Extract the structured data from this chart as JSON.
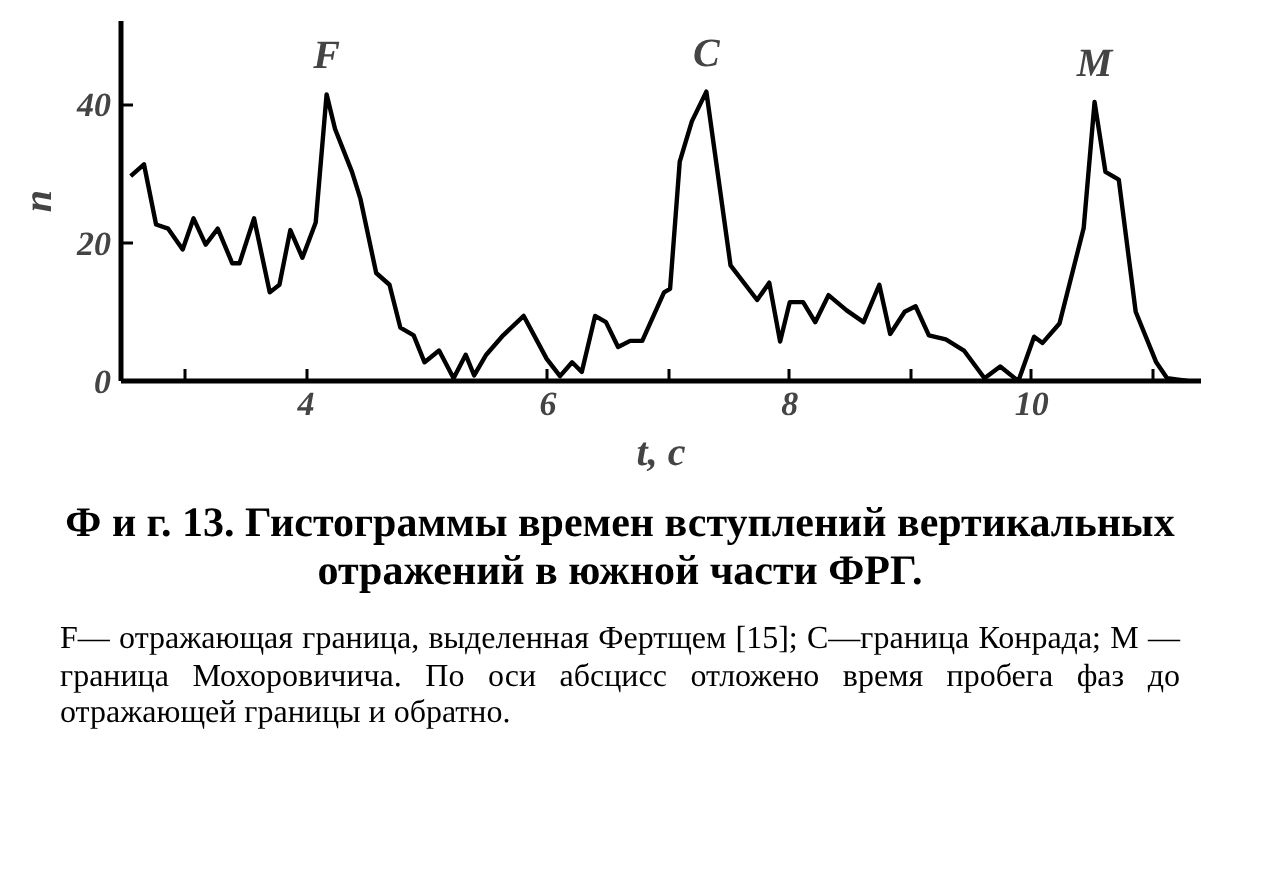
{
  "chart_data": {
    "type": "line",
    "title": "Ф и г. 13. Гистограммы времен вступлений вертикальных отражений в южной части ФРГ.",
    "subtitle": "F— отражающая граница, выделенная Фертщем [15]; C—граница Конрада; M — граница Мохоровичича. По оси абсцисс отложено время пробега фаз до отражающей границы и обратно.",
    "xlabel": "t, c",
    "ylabel": "n",
    "x": [
      2.55,
      2.66,
      2.76,
      2.86,
      2.98,
      3.07,
      3.17,
      3.27,
      3.39,
      3.45,
      3.57,
      3.7,
      3.78,
      3.87,
      3.97,
      4.08,
      4.17,
      4.24,
      4.38,
      4.45,
      4.58,
      4.69,
      4.78,
      4.89,
      4.98,
      5.1,
      5.22,
      5.32,
      5.39,
      5.49,
      5.63,
      5.8,
      5.99,
      6.1,
      6.2,
      6.28,
      6.39,
      6.48,
      6.58,
      6.68,
      6.78,
      6.96,
      7.01,
      7.09,
      7.19,
      7.31,
      7.51,
      7.73,
      7.83,
      7.92,
      8.0,
      8.11,
      8.21,
      8.32,
      8.47,
      8.61,
      8.74,
      8.83,
      8.95,
      9.04,
      9.15,
      9.29,
      9.44,
      9.61,
      9.74,
      9.89,
      10.02,
      10.09,
      10.23,
      10.43,
      10.52,
      10.61,
      10.72,
      10.86,
      11.03,
      11.12,
      11.29
    ],
    "series": [
      {
        "color": "#000000",
        "values": [
          29.6,
          31.3,
          22.6,
          22.0,
          19,
          23.5,
          19.7,
          22,
          17,
          17,
          23.5,
          12.8,
          13.9,
          21.8,
          17.8,
          22.9,
          41.4,
          36.4,
          30.2,
          26.3,
          15.6,
          13.9,
          7.7,
          6.6,
          2.7,
          4.4,
          0.4,
          3.8,
          0.8,
          3.8,
          6.6,
          9.4,
          3.2,
          0.7,
          2.7,
          1.3,
          9.4,
          8.5,
          4.9,
          5.8,
          5.8,
          12.8,
          13.3,
          31.7,
          37.5,
          41.8,
          16.7,
          11.7,
          14.2,
          5.7,
          11.4,
          11.4,
          8.5,
          12.4,
          10.2,
          8.5,
          13.9,
          6.8,
          10.0,
          10.8,
          6.6,
          6.0,
          4.4,
          0.4,
          2.1,
          0,
          6.4,
          5.5,
          8.3,
          22.1,
          40.3,
          30.2,
          29.1,
          10.0,
          2.7,
          0.4,
          0
        ]
      }
    ],
    "annotations": [
      {
        "text": "F",
        "x": 4.17,
        "y": 41.4
      },
      {
        "text": "C",
        "x": 7.31,
        "y": 41.8
      },
      {
        "text": "M",
        "x": 10.52,
        "y": 40.3
      }
    ],
    "xlim": [
      2.47,
      11.4
    ],
    "ylim": [
      0,
      52
    ],
    "xticks": [
      {
        "value": 3,
        "label": null
      },
      4,
      6,
      {
        "value": 7,
        "label": null
      },
      8,
      {
        "value": 9,
        "label": null
      },
      10,
      {
        "value": 11,
        "label": null
      }
    ],
    "yticks": [
      0,
      20,
      40
    ],
    "grid": false,
    "marker": "none",
    "line_style": "solid"
  }
}
